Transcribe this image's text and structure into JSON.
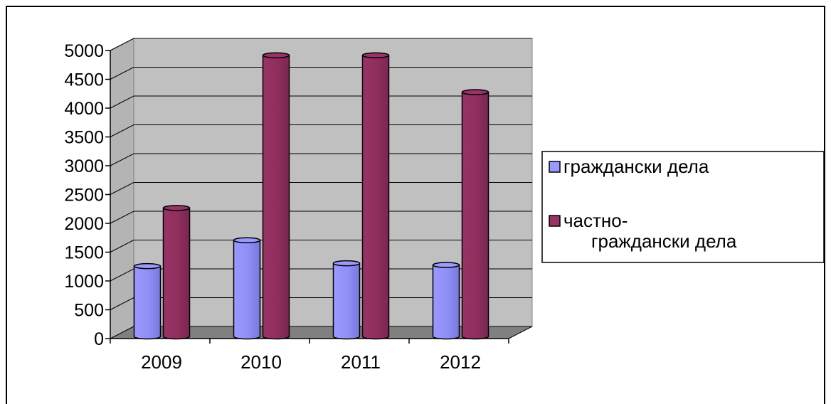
{
  "chart_data": {
    "type": "bar",
    "categories": [
      "2009",
      "2010",
      "2011",
      "2012"
    ],
    "series": [
      {
        "name": "граждански дела",
        "values": [
          1220,
          1670,
          1270,
          1240
        ],
        "color": "#9999ff"
      },
      {
        "name": "частно-граждански дела",
        "values": [
          2230,
          4880,
          4880,
          4240
        ],
        "color": "#993366"
      }
    ],
    "ylim": [
      0,
      5000
    ],
    "yticks": [
      0,
      500,
      1000,
      1500,
      2000,
      2500,
      3000,
      3500,
      4000,
      4500,
      5000
    ],
    "grid": true,
    "legend_position": "right",
    "legend": [
      {
        "lines": [
          "граждански дела"
        ],
        "color": "#9999ff"
      },
      {
        "lines": [
          "частно-",
          "граждански дела"
        ],
        "color": "#993366"
      }
    ],
    "title": "",
    "xlabel": "",
    "ylabel": "",
    "wall_color": "#c0c0c0",
    "floor_color": "#808080"
  }
}
